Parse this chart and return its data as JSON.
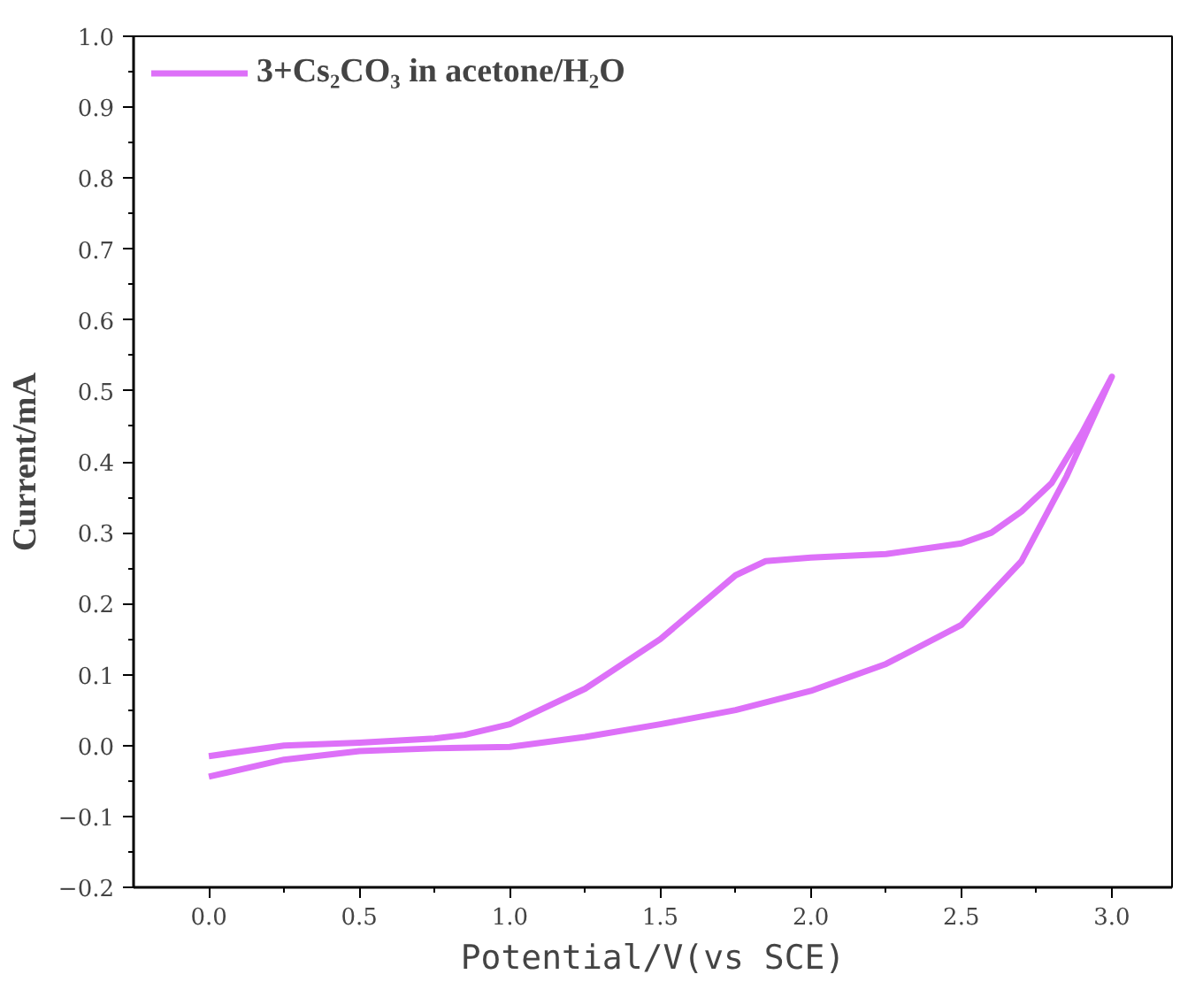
{
  "chart_data": {
    "type": "line",
    "xlabel": "Potential/V(vs SCE)",
    "ylabel": "Current/mA",
    "xlim": [
      -0.25,
      3.2
    ],
    "ylim": [
      -0.2,
      1.0
    ],
    "xticks": [
      {
        "value": 0,
        "label": "0.0"
      },
      0.5,
      {
        "value": 1,
        "label": "1.0"
      },
      1.5,
      {
        "value": 2,
        "label": "2.0"
      },
      2.5,
      {
        "value": 3,
        "label": "3.0"
      }
    ],
    "yticks": [
      {
        "value": -0.2,
        "label": "−0.2"
      },
      {
        "value": -0.1,
        "label": "−0.1"
      },
      {
        "value": 0,
        "label": "0.0"
      },
      0.1,
      0.2,
      0.3,
      0.4,
      0.5,
      0.6,
      0.7,
      0.8,
      0.9,
      {
        "value": 1,
        "label": "1.0"
      }
    ],
    "legend": "top left",
    "marker": "none",
    "line_style": "solid",
    "series": [
      {
        "name": "3+Cs₂CO₃ in acetone/H₂O",
        "color": "#dd70f8",
        "x": [
          0,
          0.25,
          0.5,
          0.75,
          1.0,
          1.25,
          1.5,
          1.75,
          2.0,
          2.25,
          2.5,
          2.7,
          2.85,
          3.0,
          2.9,
          2.8,
          2.7,
          2.6,
          2.5,
          2.25,
          2.0,
          1.85,
          1.75,
          1.5,
          1.25,
          1.0,
          0.85,
          0.75,
          0.5,
          0.25,
          0.0
        ],
        "values": [
          -0.044,
          -0.02,
          -0.008,
          -0.004,
          -0.002,
          0.012,
          0.03,
          0.05,
          0.077,
          0.115,
          0.17,
          0.26,
          0.38,
          0.52,
          0.44,
          0.37,
          0.33,
          0.3,
          0.285,
          0.27,
          0.265,
          0.26,
          0.24,
          0.15,
          0.08,
          0.03,
          0.015,
          0.01,
          0.004,
          0.0,
          -0.015
        ]
      }
    ]
  }
}
